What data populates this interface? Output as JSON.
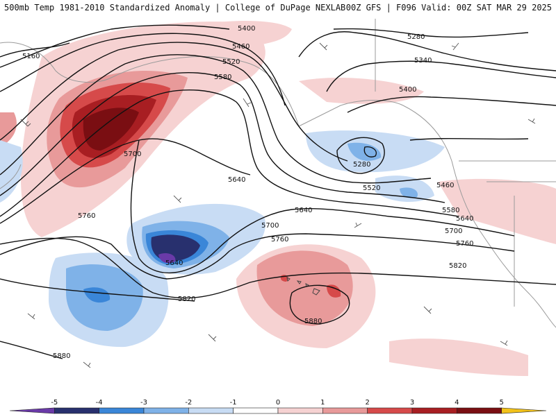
{
  "header": {
    "left": "500mb Temp 1981-2010 Standardized Anomaly | College of DuPage NEXLAB",
    "right": "00Z GFS | F096 Valid: 00Z SAT MAR 29 2025"
  },
  "contour_labels": [
    "5160",
    "5280",
    "5280",
    "5340",
    "5400",
    "5400",
    "5460",
    "5460",
    "5520",
    "5520",
    "5580",
    "5580",
    "5640",
    "5640",
    "5640",
    "5640",
    "5700",
    "5700",
    "5700",
    "5760",
    "5760",
    "5760",
    "5820",
    "5820",
    "5880",
    "5880"
  ],
  "colorbar": {
    "ticks": [
      "-5",
      "-4",
      "-3",
      "-2",
      "-1",
      "0",
      "1",
      "2",
      "3",
      "4",
      "5"
    ],
    "colors": [
      "#6a3aa8",
      "#28306e",
      "#3a86d8",
      "#7fb2e8",
      "#c8dcf4",
      "#ffffff",
      "#f6d2d2",
      "#e89a9a",
      "#d64a4a",
      "#a81e22",
      "#7a0e12",
      "#f2c21a"
    ]
  }
}
